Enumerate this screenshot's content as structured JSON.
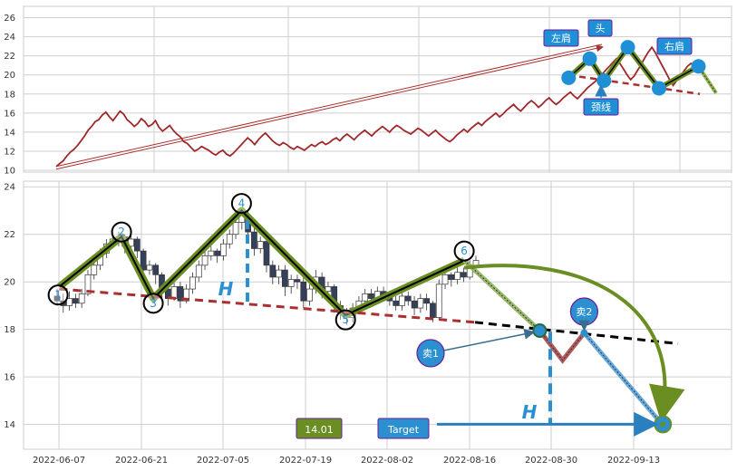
{
  "colors": {
    "price_line": "#a0282a",
    "neckline": "#a9302e",
    "pattern_green": "#6b8e23",
    "pattern_black": "#000000",
    "marker_blue": "#1f8fd6",
    "label_border": "#6a1b9a",
    "candle_down": "#35415a",
    "grid": "#cfcfcf"
  },
  "chart_data": [
    {
      "type": "line",
      "name": "overview",
      "ylim": [
        10,
        27
      ],
      "yticks": [
        10,
        12,
        14,
        16,
        18,
        20,
        22,
        24,
        26
      ],
      "xlim": [
        0,
        100
      ],
      "grid": true,
      "series": [
        {
          "values": [
            10.4,
            10.7,
            11.0,
            11.5,
            11.9,
            12.2,
            12.6,
            13.1,
            13.6,
            14.2,
            14.6,
            15.1,
            15.3,
            15.8,
            16.1,
            15.6,
            15.2,
            15.7,
            16.2,
            15.9,
            15.3,
            15.0,
            14.6,
            14.9,
            15.4,
            15.1,
            14.6,
            14.8,
            15.2,
            14.5,
            14.1,
            14.4,
            14.7,
            14.2,
            13.8,
            13.5,
            13.0,
            12.8,
            12.4,
            12.0,
            12.2,
            12.5,
            12.3,
            12.1,
            11.8,
            11.6,
            11.9,
            12.1,
            11.7,
            11.5,
            11.8,
            12.2,
            12.6,
            13.0,
            13.4,
            13.1,
            12.7,
            13.2,
            13.6,
            13.9,
            13.5,
            13.1,
            12.8,
            12.6,
            12.9,
            12.7,
            12.4,
            12.2,
            12.5,
            12.3,
            12.1,
            12.4,
            12.7,
            12.5,
            12.8,
            13.0,
            12.7,
            12.9,
            13.2,
            13.4,
            13.1,
            13.5,
            13.8,
            13.5,
            13.2,
            13.6,
            13.9,
            14.2,
            13.9,
            13.6,
            14.0,
            14.3,
            14.6,
            14.3,
            14.0,
            14.4,
            14.7,
            14.5,
            14.2,
            14.0,
            13.8,
            14.1,
            14.4,
            14.2,
            13.9,
            13.6,
            13.9,
            14.2,
            13.8,
            13.5,
            13.2,
            13.0,
            13.3,
            13.7,
            14.0,
            14.3,
            14.0,
            14.4,
            14.7,
            15.0,
            14.7,
            15.1,
            15.4,
            15.7,
            16.0,
            15.6,
            15.9,
            16.3,
            16.6,
            16.9,
            16.5,
            16.2,
            16.6,
            17.0,
            17.3,
            17.0,
            16.6,
            16.9,
            17.3,
            17.6,
            17.2,
            16.9,
            17.2,
            17.6,
            17.9,
            18.2,
            17.8,
            17.5,
            17.9,
            18.3,
            18.7,
            19.0,
            19.3,
            19.7,
            20.1,
            20.5,
            20.9,
            21.3,
            21.7,
            21.2,
            20.6,
            20.0,
            19.5,
            19.9,
            20.5,
            21.1,
            21.8,
            22.4,
            22.9,
            22.3,
            21.6,
            20.9,
            20.2,
            19.5,
            18.9,
            19.4,
            19.9,
            20.4,
            20.9,
            21.2,
            21.0,
            20.6
          ],
          "color": "#a0282a"
        }
      ],
      "annotations": [
        {
          "text": "左肩",
          "x_data": 82.5,
          "y_data": 21.8
        },
        {
          "text": "头",
          "x_data": 88.0,
          "y_data": 22.9
        },
        {
          "text": "颈线",
          "x_data": 88.0,
          "y_data": 19.2
        },
        {
          "text": "右肩",
          "x_data": 94.0,
          "y_data": 20.9
        }
      ],
      "pattern": [
        [
          78.3,
          19.7
        ],
        [
          81.4,
          21.7
        ],
        [
          83.5,
          19.4
        ],
        [
          87.0,
          22.9
        ],
        [
          91.6,
          18.6
        ],
        [
          97.4,
          20.9
        ],
        [
          100,
          18.1
        ]
      ]
    },
    {
      "type": "candlestick",
      "name": "detail",
      "ylim": [
        13.3,
        24.2
      ],
      "yticks": [
        14,
        16,
        18,
        20,
        22,
        24
      ],
      "x_dates": [
        "2022-06-07",
        "2022-06-21",
        "2022-07-05",
        "2022-07-19",
        "2022-08-02",
        "2022-08-16",
        "2022-08-30",
        "2022-09-13"
      ],
      "candles": [
        [
          19.4,
          19.2,
          19.7,
          19.0
        ],
        [
          19.2,
          19.0,
          19.5,
          18.7
        ],
        [
          19.0,
          19.3,
          19.6,
          18.8
        ],
        [
          19.3,
          19.1,
          19.5,
          18.9
        ],
        [
          19.1,
          19.5,
          19.7,
          18.9
        ],
        [
          19.5,
          20.3,
          20.5,
          19.4
        ],
        [
          20.3,
          20.7,
          21.0,
          20.1
        ],
        [
          20.7,
          21.2,
          21.4,
          20.5
        ],
        [
          21.2,
          21.6,
          21.8,
          21.0
        ],
        [
          21.6,
          21.8,
          22.0,
          21.4
        ],
        [
          21.8,
          21.9,
          22.1,
          21.5
        ],
        [
          21.9,
          21.5,
          22.0,
          21.2
        ],
        [
          21.5,
          21.8,
          22.1,
          21.3
        ],
        [
          21.8,
          21.3,
          21.9,
          21.0
        ],
        [
          21.3,
          20.5,
          21.4,
          20.2
        ],
        [
          20.5,
          20.7,
          20.9,
          20.3
        ],
        [
          20.7,
          20.3,
          20.8,
          19.9
        ],
        [
          20.3,
          19.7,
          20.4,
          19.4
        ],
        [
          19.7,
          19.3,
          19.8,
          19.0
        ],
        [
          19.3,
          19.8,
          20.0,
          19.2
        ],
        [
          19.8,
          19.2,
          20.0,
          18.9
        ],
        [
          19.2,
          19.7,
          19.9,
          19.1
        ],
        [
          19.7,
          20.2,
          20.4,
          19.5
        ],
        [
          20.2,
          20.7,
          20.9,
          20.0
        ],
        [
          20.7,
          21.1,
          21.3,
          20.5
        ],
        [
          21.1,
          21.3,
          21.5,
          20.9
        ],
        [
          21.3,
          21.1,
          21.4,
          20.8
        ],
        [
          21.1,
          21.6,
          21.8,
          20.9
        ],
        [
          21.6,
          22.0,
          22.2,
          21.4
        ],
        [
          22.0,
          22.5,
          22.8,
          21.8
        ],
        [
          22.5,
          22.8,
          23.1,
          22.2
        ],
        [
          22.8,
          22.1,
          23.0,
          21.9
        ],
        [
          22.1,
          21.4,
          22.3,
          21.1
        ],
        [
          21.4,
          21.7,
          21.9,
          21.2
        ],
        [
          21.7,
          20.7,
          21.8,
          20.4
        ],
        [
          20.7,
          20.2,
          20.9,
          19.9
        ],
        [
          20.2,
          20.5,
          20.7,
          19.9
        ],
        [
          20.5,
          19.8,
          20.7,
          19.4
        ],
        [
          19.8,
          20.1,
          20.3,
          19.5
        ],
        [
          20.1,
          20.0,
          20.3,
          19.7
        ],
        [
          20.0,
          19.2,
          20.2,
          18.9
        ],
        [
          19.2,
          19.7,
          19.9,
          19.0
        ],
        [
          19.7,
          20.2,
          20.5,
          19.5
        ],
        [
          20.2,
          19.6,
          20.4,
          19.3
        ],
        [
          19.6,
          19.8,
          20.0,
          19.4
        ],
        [
          19.8,
          19.0,
          19.9,
          18.7
        ],
        [
          19.0,
          18.7,
          19.2,
          18.4
        ],
        [
          18.7,
          18.5,
          18.9,
          18.2
        ],
        [
          18.5,
          18.9,
          19.1,
          18.3
        ],
        [
          18.9,
          19.2,
          19.4,
          18.7
        ],
        [
          19.2,
          19.5,
          19.7,
          19.0
        ],
        [
          19.5,
          19.3,
          19.7,
          19.1
        ],
        [
          19.3,
          19.6,
          19.8,
          19.1
        ],
        [
          19.6,
          19.4,
          19.8,
          19.2
        ],
        [
          19.4,
          19.2,
          19.6,
          19.0
        ],
        [
          19.2,
          19.0,
          19.4,
          18.8
        ],
        [
          19.0,
          19.4,
          19.6,
          18.8
        ],
        [
          19.4,
          19.2,
          19.6,
          19.0
        ],
        [
          19.2,
          18.9,
          19.4,
          18.6
        ],
        [
          18.9,
          19.3,
          19.5,
          18.7
        ],
        [
          19.3,
          19.1,
          19.5,
          18.8
        ],
        [
          19.1,
          18.5,
          19.2,
          18.3
        ],
        [
          18.5,
          19.9,
          20.1,
          18.4
        ],
        [
          19.9,
          20.3,
          20.6,
          19.7
        ],
        [
          20.3,
          20.1,
          20.4,
          19.8
        ],
        [
          20.1,
          20.4,
          20.6,
          19.9
        ],
        [
          20.4,
          20.2,
          20.6,
          20.0
        ],
        [
          20.2,
          20.6,
          20.9,
          20.1
        ],
        [
          20.6,
          20.9,
          21.1,
          20.4
        ]
      ],
      "circle_points": [
        {
          "label": "1",
          "x_data": 0.3,
          "y_data": 19.45
        },
        {
          "label": "2",
          "x_data": 10.3,
          "y_data": 22.1
        },
        {
          "label": "3",
          "x_data": 15.3,
          "y_data": 19.1
        },
        {
          "label": "4",
          "x_data": 29.2,
          "y_data": 23.3
        },
        {
          "label": "5",
          "x_data": 45.6,
          "y_data": 18.4
        },
        {
          "label": "6",
          "x_data": 64.3,
          "y_data": 21.3
        }
      ],
      "zigzag": [
        [
          0.5,
          19.8
        ],
        [
          10.3,
          21.9
        ],
        [
          15.3,
          19.3
        ],
        [
          29.2,
          23.0
        ],
        [
          45.6,
          18.6
        ],
        [
          64.3,
          20.9
        ]
      ],
      "neckline": [
        [
          0.5,
          19.7
        ],
        [
          66.0,
          18.3
        ]
      ],
      "neckline_ext": [
        [
          66.0,
          18.3
        ],
        [
          98.0,
          17.4
        ]
      ],
      "sell_points": [
        {
          "label": "卖1",
          "x_data": 59.0,
          "y_data": 17.0
        },
        {
          "label": "卖2",
          "x_data": 83.2,
          "y_data": 18.75
        }
      ],
      "sell_path": [
        [
          64.3,
          20.9
        ],
        [
          76.2,
          17.95
        ],
        [
          79.8,
          16.7
        ],
        [
          83.2,
          17.85
        ],
        [
          95.6,
          14.01
        ]
      ],
      "h_label": "H",
      "target_text": "Target",
      "target_value": "14.01",
      "target_point": {
        "x_data": 95.6,
        "y_data": 14.01
      }
    }
  ]
}
